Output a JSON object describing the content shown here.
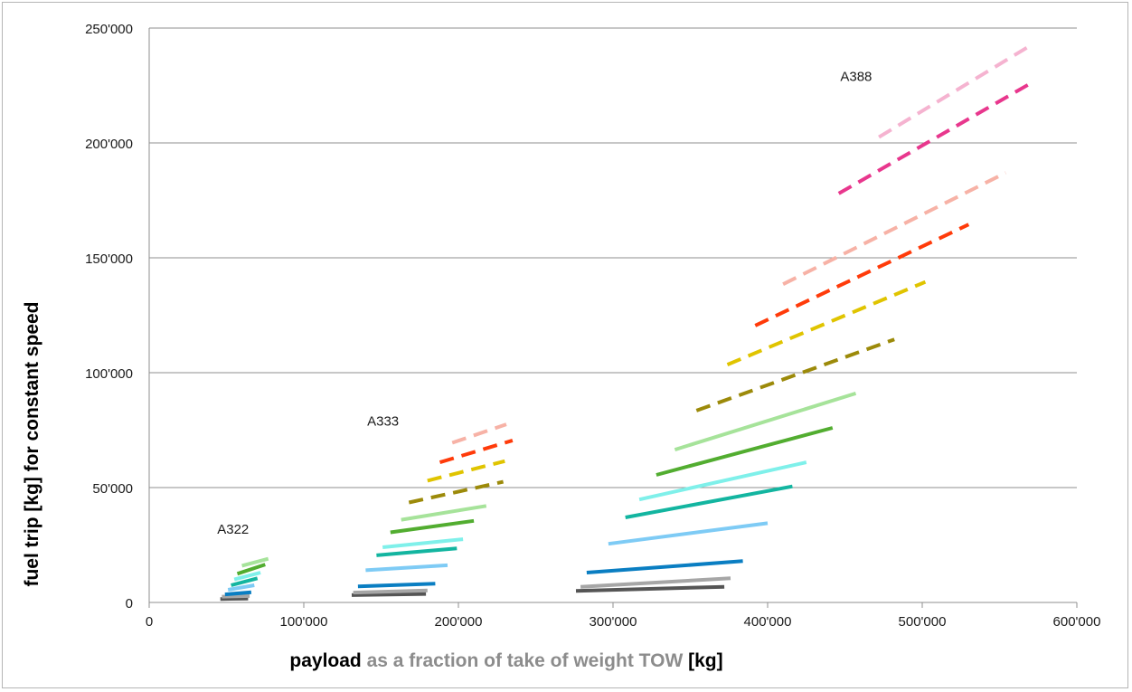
{
  "chart_data": {
    "type": "line",
    "xlim": [
      0,
      600000
    ],
    "ylim": [
      0,
      250000
    ],
    "x_ticks": [
      0,
      100000,
      200000,
      300000,
      400000,
      500000,
      600000
    ],
    "x_tick_labels": [
      "0",
      "100'000",
      "200'000",
      "300'000",
      "400'000",
      "500'000",
      "600'000"
    ],
    "y_ticks": [
      0,
      50000,
      100000,
      150000,
      200000,
      250000
    ],
    "y_tick_labels": [
      "0",
      "50'000",
      "100'000",
      "150'000",
      "200'000",
      "250'000"
    ],
    "grid": "horizontal",
    "ylabel": "fuel trip [kg] for constant speed",
    "xlabel_parts": [
      {
        "text": "payload",
        "color": "#000000"
      },
      {
        "text": " as a fraction of take of weight TOW ",
        "color": "#8c8c8c"
      },
      {
        "text": "[kg]",
        "color": "#000000"
      }
    ],
    "annotations": [
      {
        "text": "A322",
        "x": 44000,
        "y": 30000
      },
      {
        "text": "A333",
        "x": 141000,
        "y": 77000
      },
      {
        "text": "A388",
        "x": 447000,
        "y": 227000
      }
    ],
    "series": [
      {
        "color": "#555555",
        "style": "solid",
        "x": [
          46000,
          64000
        ],
        "y": [
          1500,
          1700
        ]
      },
      {
        "color": "#a6a6a6",
        "style": "solid",
        "x": [
          47000,
          65000
        ],
        "y": [
          2500,
          2800
        ]
      },
      {
        "color": "#0a7ec2",
        "style": "solid",
        "x": [
          49000,
          66000
        ],
        "y": [
          3500,
          4400
        ]
      },
      {
        "color": "#7ecbf5",
        "style": "solid",
        "x": [
          51000,
          68000
        ],
        "y": [
          5500,
          7500
        ]
      },
      {
        "color": "#13b5a0",
        "style": "solid",
        "x": [
          53000,
          70000
        ],
        "y": [
          7500,
          10500
        ]
      },
      {
        "color": "#7ff0ea",
        "style": "solid",
        "x": [
          55000,
          72000
        ],
        "y": [
          10000,
          13000
        ]
      },
      {
        "color": "#52ad30",
        "style": "solid",
        "x": [
          57000,
          75000
        ],
        "y": [
          12500,
          16500
        ]
      },
      {
        "color": "#a6e39a",
        "style": "solid",
        "x": [
          60000,
          77000
        ],
        "y": [
          16000,
          19000
        ]
      },
      {
        "color": "#555555",
        "style": "solid",
        "x": [
          131000,
          179000
        ],
        "y": [
          3200,
          3700
        ]
      },
      {
        "color": "#a6a6a6",
        "style": "solid",
        "x": [
          132000,
          180000
        ],
        "y": [
          4300,
          5200
        ]
      },
      {
        "color": "#0a7ec2",
        "style": "solid",
        "x": [
          135000,
          185000
        ],
        "y": [
          7000,
          8200
        ]
      },
      {
        "color": "#7ecbf5",
        "style": "solid",
        "x": [
          140000,
          193000
        ],
        "y": [
          14000,
          16200
        ]
      },
      {
        "color": "#13b5a0",
        "style": "solid",
        "x": [
          147000,
          199000
        ],
        "y": [
          20500,
          23500
        ]
      },
      {
        "color": "#7ff0ea",
        "style": "solid",
        "x": [
          151000,
          203000
        ],
        "y": [
          24000,
          27500
        ]
      },
      {
        "color": "#52ad30",
        "style": "solid",
        "x": [
          156000,
          210000
        ],
        "y": [
          30500,
          35500
        ]
      },
      {
        "color": "#a6e39a",
        "style": "solid",
        "x": [
          163000,
          218000
        ],
        "y": [
          36000,
          42000
        ]
      },
      {
        "color": "#9c8a0a",
        "style": "dashed",
        "x": [
          168000,
          229000
        ],
        "y": [
          43500,
          52500
        ]
      },
      {
        "color": "#e0c400",
        "style": "dashed",
        "x": [
          180000,
          230000
        ],
        "y": [
          53000,
          61500
        ]
      },
      {
        "color": "#ff3b0a",
        "style": "dashed",
        "x": [
          188000,
          235000
        ],
        "y": [
          61000,
          70500
        ]
      },
      {
        "color": "#f7b2a6",
        "style": "dashed",
        "x": [
          196000,
          231000
        ],
        "y": [
          69500,
          77500
        ]
      },
      {
        "color": "#555555",
        "style": "solid",
        "x": [
          276000,
          372000
        ],
        "y": [
          5000,
          6800
        ]
      },
      {
        "color": "#a6a6a6",
        "style": "solid",
        "x": [
          279000,
          376000
        ],
        "y": [
          6800,
          10500
        ]
      },
      {
        "color": "#0a7ec2",
        "style": "solid",
        "x": [
          283000,
          384000
        ],
        "y": [
          13000,
          18000
        ]
      },
      {
        "color": "#7ecbf5",
        "style": "solid",
        "x": [
          297000,
          400000
        ],
        "y": [
          25500,
          34500
        ]
      },
      {
        "color": "#13b5a0",
        "style": "solid",
        "x": [
          308000,
          416000
        ],
        "y": [
          37000,
          50500
        ]
      },
      {
        "color": "#7ff0ea",
        "style": "solid",
        "x": [
          317000,
          425000
        ],
        "y": [
          44800,
          61000
        ]
      },
      {
        "color": "#52ad30",
        "style": "solid",
        "x": [
          328000,
          442000
        ],
        "y": [
          55500,
          76000
        ]
      },
      {
        "color": "#a6e39a",
        "style": "solid",
        "x": [
          340000,
          457000
        ],
        "y": [
          66500,
          91000
        ]
      },
      {
        "color": "#9c8a0a",
        "style": "dashed",
        "x": [
          354000,
          482000
        ],
        "y": [
          83500,
          114500
        ]
      },
      {
        "color": "#e0c400",
        "style": "dashed",
        "x": [
          374000,
          502000
        ],
        "y": [
          103500,
          139500
        ]
      },
      {
        "color": "#ff3b0a",
        "style": "dashed",
        "x": [
          392000,
          530000
        ],
        "y": [
          120500,
          164500
        ]
      },
      {
        "color": "#f7b2a6",
        "style": "dashed",
        "x": [
          410000,
          554000
        ],
        "y": [
          138500,
          187000
        ]
      },
      {
        "color": "#e8378d",
        "style": "dashed",
        "x": [
          446000,
          569000
        ],
        "y": [
          178000,
          225500
        ]
      },
      {
        "color": "#f5b3d0",
        "style": "dashed",
        "x": [
          472000,
          569000
        ],
        "y": [
          202500,
          242000
        ]
      }
    ]
  }
}
